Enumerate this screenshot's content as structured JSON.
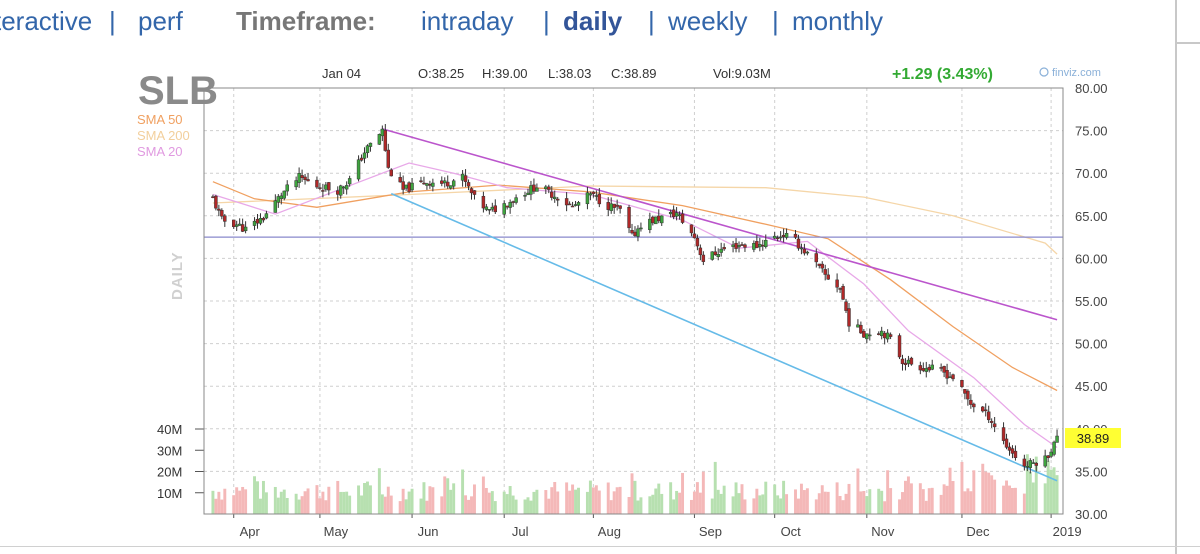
{
  "nav": {
    "left_fragment": "teractive",
    "left_sep": "|",
    "left_item": "perf",
    "timeframe_label": "Timeframe:",
    "options": [
      "intraday",
      "daily",
      "weekly",
      "monthly"
    ],
    "active": "daily",
    "separator": "|"
  },
  "chart_data": {
    "type": "candlestick",
    "title": "SLB",
    "timeframe_label": "DAILY",
    "ohlc_header": {
      "date": "Jan 04",
      "open": "O:38.25",
      "high": "H:39.00",
      "low": "L:38.03",
      "close": "C:38.89",
      "volume": "Vol:9.03M"
    },
    "change": "+1.29 (3.43%)",
    "source": "finviz.com",
    "last_price": "38.89",
    "legend": [
      {
        "name": "SMA 50",
        "color": "#f0a060"
      },
      {
        "name": "SMA 200",
        "color": "#f5d6a8"
      },
      {
        "name": "SMA 20",
        "color": "#e8a8e8"
      }
    ],
    "x_labels": [
      "Apr",
      "May",
      "Jun",
      "Jul",
      "Aug",
      "Sep",
      "Oct",
      "Nov",
      "Dec",
      "2019"
    ],
    "y_ticks": [
      "80.00",
      "75.00",
      "70.00",
      "65.00",
      "60.00",
      "55.00",
      "50.00",
      "45.00",
      "40.00",
      "35.00",
      "30.00"
    ],
    "ylim": [
      30,
      80
    ],
    "volume_ticks": [
      "40M",
      "30M",
      "20M",
      "10M"
    ],
    "horizontal_line": 62.5,
    "trendlines": [
      {
        "from": [
          "2018-05-22",
          75.2
        ],
        "to": [
          "2019-01-04",
          52.8
        ],
        "color": "#bb55cc"
      },
      {
        "from": [
          "2018-05-25",
          67.6
        ],
        "to": [
          "2019-01-04",
          33.9
        ],
        "color": "#66bbe8"
      }
    ],
    "close_anchors": [
      [
        "2018-03-26",
        67.0
      ],
      [
        "2018-03-29",
        64.5
      ],
      [
        "2018-04-03",
        64.0
      ],
      [
        "2018-04-06",
        63.4
      ],
      [
        "2018-04-12",
        64.8
      ],
      [
        "2018-04-18",
        67.5
      ],
      [
        "2018-04-24",
        69.5
      ],
      [
        "2018-04-30",
        68.5
      ],
      [
        "2018-05-07",
        68.0
      ],
      [
        "2018-05-11",
        69.2
      ],
      [
        "2018-05-16",
        72.5
      ],
      [
        "2018-05-22",
        75.0
      ],
      [
        "2018-05-24",
        70.5
      ],
      [
        "2018-05-29",
        68.0
      ],
      [
        "2018-06-05",
        69.0
      ],
      [
        "2018-06-12",
        68.8
      ],
      [
        "2018-06-18",
        69.5
      ],
      [
        "2018-06-22",
        67.0
      ],
      [
        "2018-06-27",
        65.5
      ],
      [
        "2018-07-03",
        66.5
      ],
      [
        "2018-07-09",
        67.8
      ],
      [
        "2018-07-13",
        68.5
      ],
      [
        "2018-07-20",
        67.2
      ],
      [
        "2018-07-25",
        66.0
      ],
      [
        "2018-07-31",
        67.5
      ],
      [
        "2018-08-06",
        66.2
      ],
      [
        "2018-08-10",
        65.6
      ],
      [
        "2018-08-14",
        62.5
      ],
      [
        "2018-08-17",
        64.0
      ],
      [
        "2018-08-24",
        64.8
      ],
      [
        "2018-08-29",
        65.3
      ],
      [
        "2018-09-04",
        62.5
      ],
      [
        "2018-09-07",
        59.8
      ],
      [
        "2018-09-13",
        61.0
      ],
      [
        "2018-09-19",
        61.6
      ],
      [
        "2018-09-25",
        61.5
      ],
      [
        "2018-10-01",
        62.5
      ],
      [
        "2018-10-04",
        62.8
      ],
      [
        "2018-10-08",
        62.0
      ],
      [
        "2018-10-12",
        60.5
      ],
      [
        "2018-10-18",
        58.0
      ],
      [
        "2018-10-23",
        56.5
      ],
      [
        "2018-10-26",
        52.5
      ],
      [
        "2018-10-31",
        51.2
      ],
      [
        "2018-11-06",
        51.5
      ],
      [
        "2018-11-09",
        50.5
      ],
      [
        "2018-11-13",
        48.0
      ],
      [
        "2018-11-20",
        47.2
      ],
      [
        "2018-11-26",
        46.8
      ],
      [
        "2018-11-30",
        46.0
      ],
      [
        "2018-12-06",
        43.0
      ],
      [
        "2018-12-12",
        41.5
      ],
      [
        "2018-12-18",
        38.0
      ],
      [
        "2018-12-21",
        36.8
      ],
      [
        "2018-12-24",
        35.6
      ],
      [
        "2018-12-27",
        36.0
      ],
      [
        "2018-12-31",
        36.5
      ],
      [
        "2019-01-02",
        37.6
      ],
      [
        "2019-01-04",
        38.89
      ]
    ],
    "sma_anchors": {
      "SMA 200": [
        [
          "2018-03-26",
          66.5
        ],
        [
          "2018-05-31",
          67.5
        ],
        [
          "2018-07-31",
          68.5
        ],
        [
          "2018-09-28",
          68.3
        ],
        [
          "2018-10-31",
          67.2
        ],
        [
          "2018-11-30",
          65.0
        ],
        [
          "2018-12-31",
          61.8
        ],
        [
          "2019-01-04",
          60.5
        ]
      ],
      "SMA 50": [
        [
          "2018-03-26",
          69.0
        ],
        [
          "2018-04-09",
          67.0
        ],
        [
          "2018-04-30",
          66.0
        ],
        [
          "2018-05-31",
          67.8
        ],
        [
          "2018-06-30",
          68.6
        ],
        [
          "2018-07-31",
          67.8
        ],
        [
          "2018-08-31",
          66.2
        ],
        [
          "2018-09-28",
          64.0
        ],
        [
          "2018-10-19",
          62.3
        ],
        [
          "2018-11-09",
          57.5
        ],
        [
          "2018-11-30",
          52.0
        ],
        [
          "2018-12-20",
          47.2
        ],
        [
          "2019-01-04",
          44.5
        ]
      ],
      "SMA 20": [
        [
          "2018-03-26",
          67.5
        ],
        [
          "2018-04-16",
          65.2
        ],
        [
          "2018-05-07",
          68.0
        ],
        [
          "2018-05-31",
          71.2
        ],
        [
          "2018-06-15",
          70.0
        ],
        [
          "2018-07-03",
          68.3
        ],
        [
          "2018-07-31",
          67.5
        ],
        [
          "2018-08-31",
          64.5
        ],
        [
          "2018-09-19",
          61.2
        ],
        [
          "2018-10-12",
          62.0
        ],
        [
          "2018-10-31",
          57.0
        ],
        [
          "2018-11-15",
          51.5
        ],
        [
          "2018-12-07",
          46.0
        ],
        [
          "2018-12-24",
          40.5
        ],
        [
          "2019-01-04",
          37.8
        ]
      ]
    }
  }
}
